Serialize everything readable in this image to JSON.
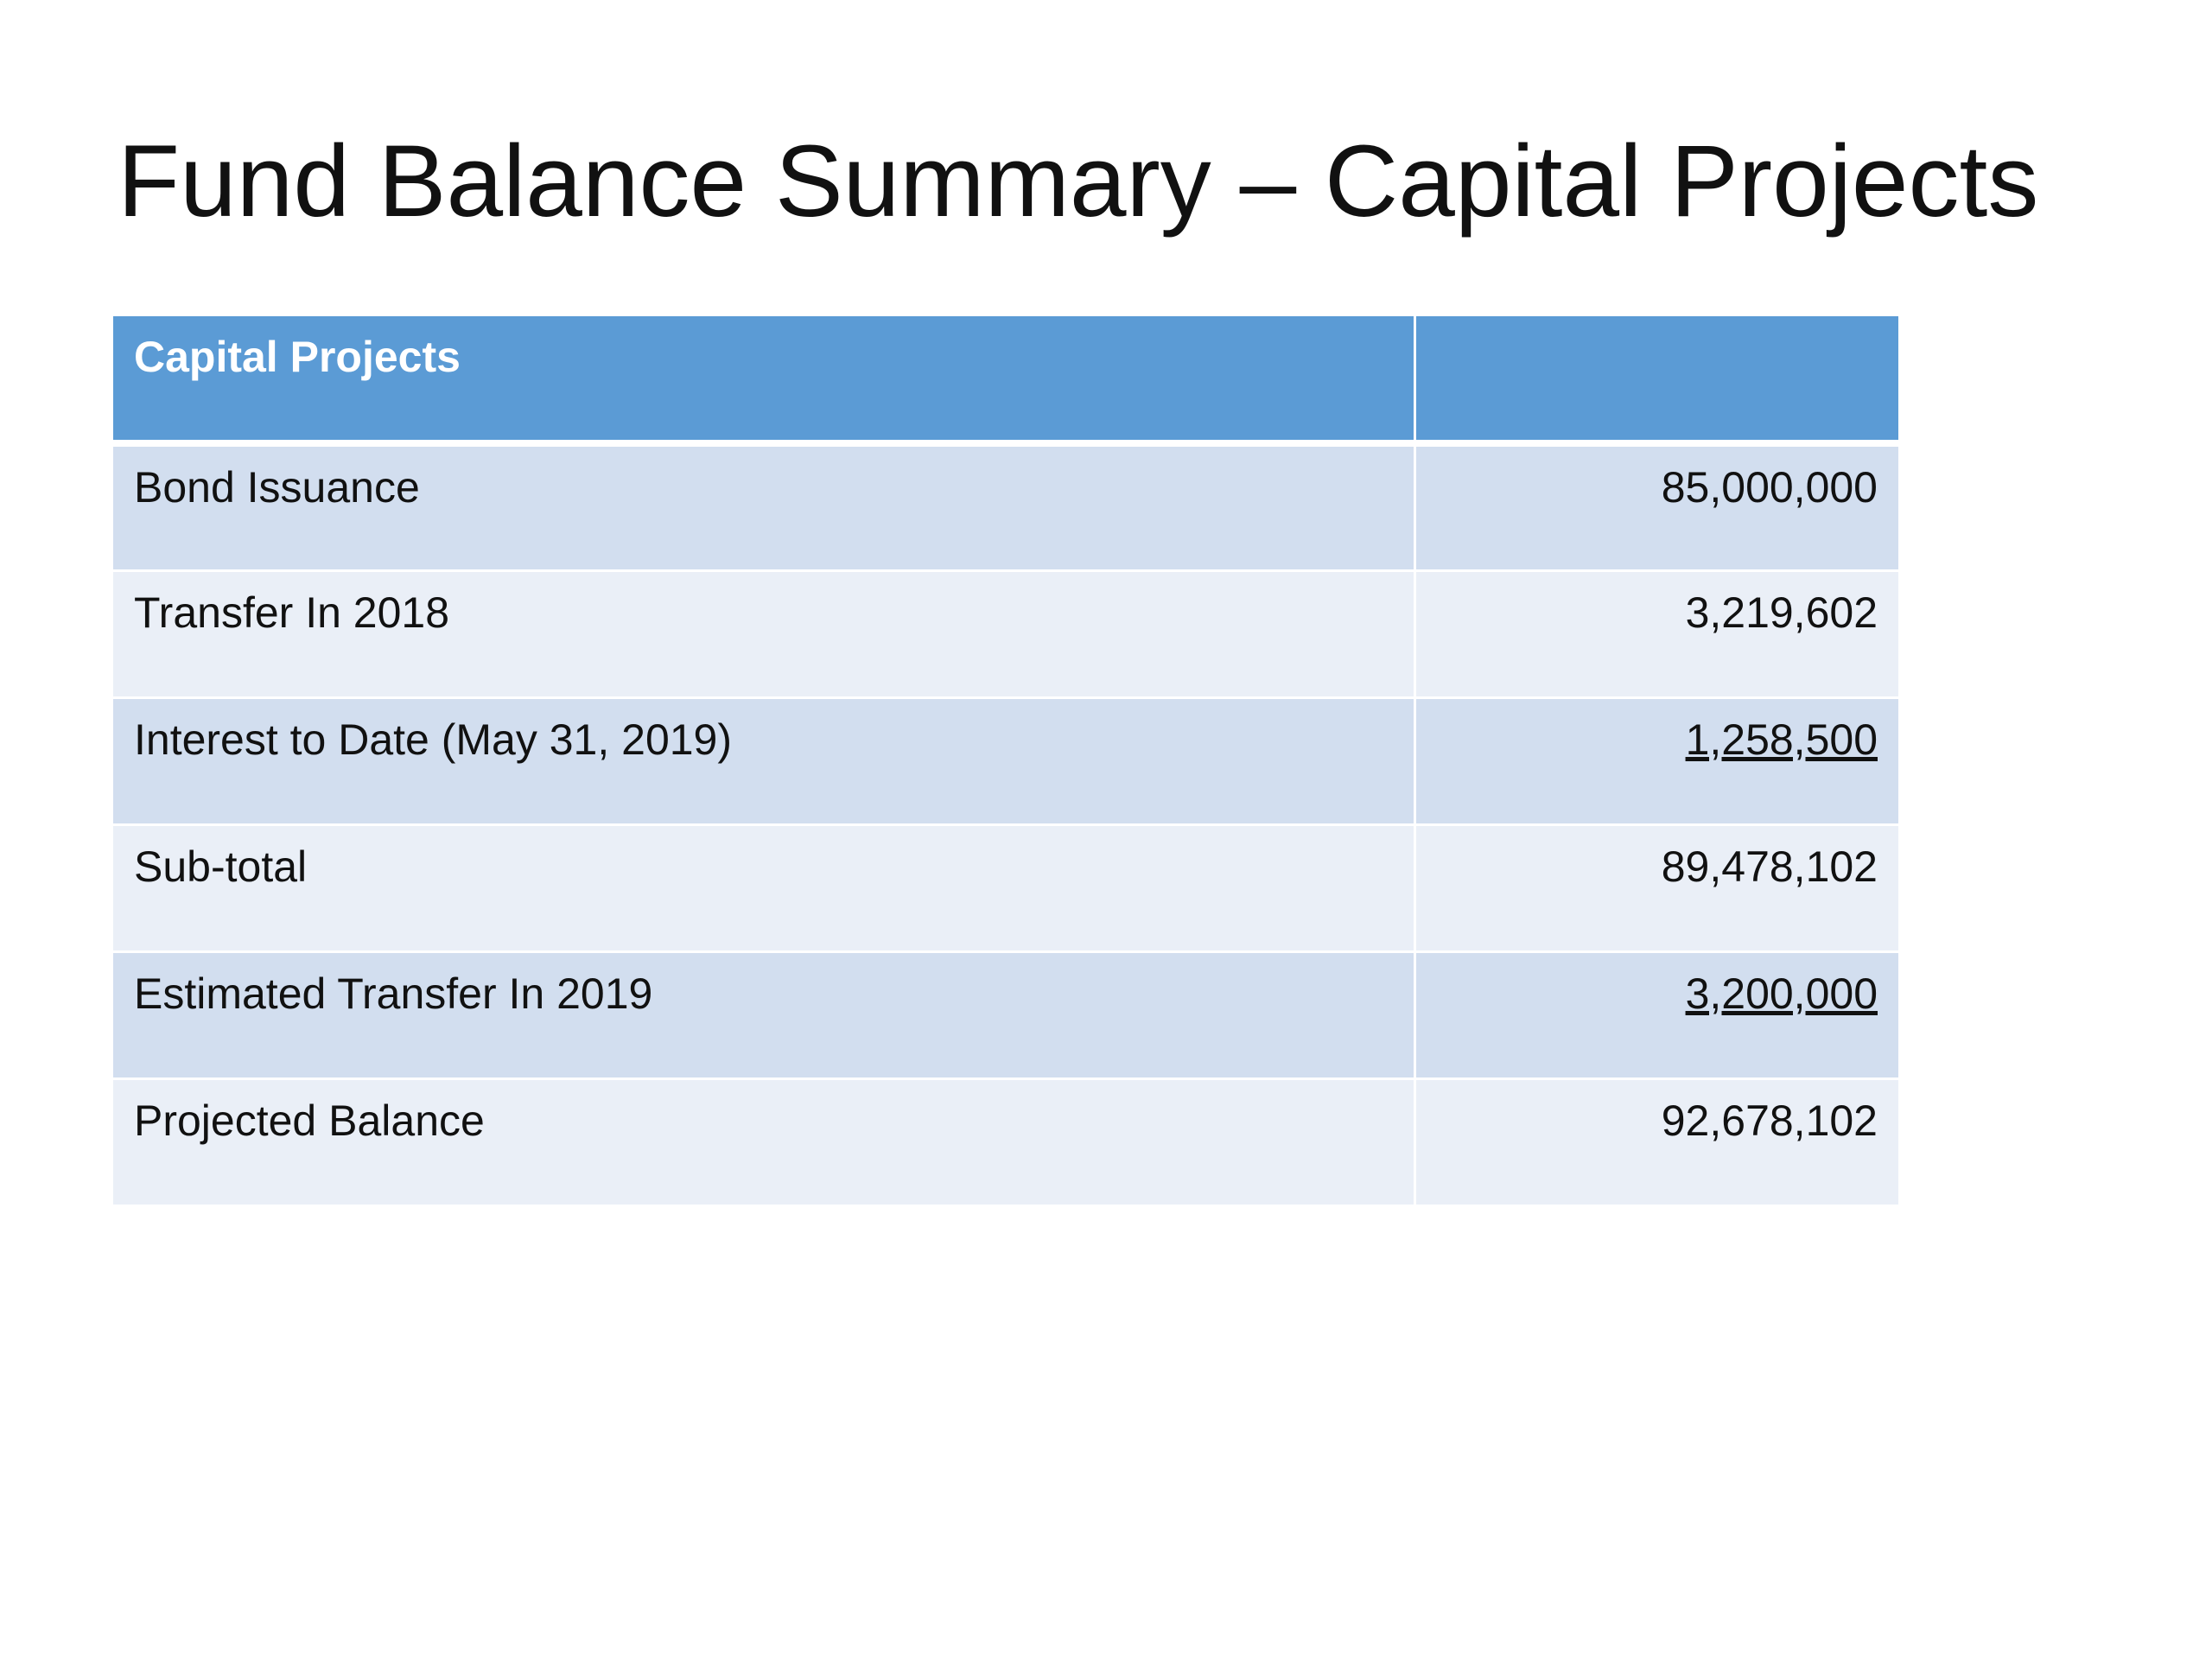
{
  "slide": {
    "title": "Fund Balance Summary – Capital Projects"
  },
  "table": {
    "header": {
      "label": "Capital Projects",
      "value": ""
    },
    "rows": [
      {
        "label": "Bond Issuance",
        "value": "85,000,000",
        "underlined": false
      },
      {
        "label": "Transfer In 2018",
        "value": "3,219,602",
        "underlined": false
      },
      {
        "label": "Interest to Date (May 31, 2019)",
        "value": "1,258,500",
        "underlined": true
      },
      {
        "label": "Sub-total",
        "value": "89,478,102",
        "underlined": false
      },
      {
        "label": "Estimated Transfer In 2019",
        "value": "3,200,000",
        "underlined": true
      },
      {
        "label": "Projected Balance",
        "value": "92,678,102",
        "underlined": false
      }
    ]
  },
  "colors": {
    "header_bg": "#5b9bd5",
    "row_band_dark": "#d2deef",
    "row_band_light": "#eaeff7"
  }
}
